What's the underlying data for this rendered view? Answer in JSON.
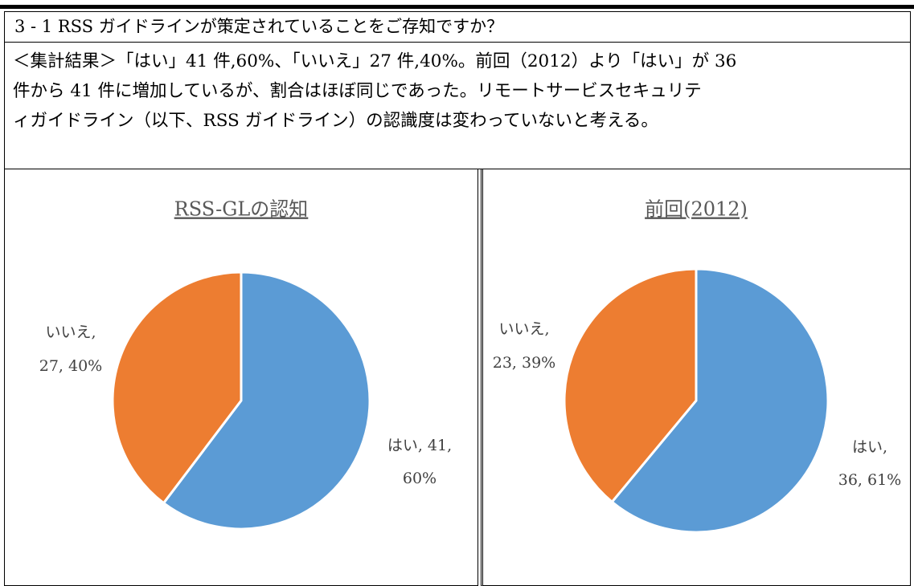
{
  "question": "3 - 1 RSS ガイドラインが策定されていることをご存知ですか？",
  "summary": [
    "＜集計結果＞「はい」41 件,60%、「いいえ」27 件,40%。前回（2012）より「はい」が 36",
    "件から 41 件に増加しているが、割合はほぼ同じであった。リモートサービスセキュリテ",
    "ィガイドライン（以下、RSS ガイドライン）の認識度は変わっていないと考える。"
  ],
  "chart_data": [
    {
      "type": "pie",
      "title": "RSS-GLの認知",
      "categories": [
        "はい",
        "いいえ"
      ],
      "values": [
        41,
        27
      ],
      "value_labels": [
        [
          "はい, 41,",
          "60%"
        ],
        [
          "いいえ,",
          "27, 40%"
        ]
      ],
      "colors": [
        "#5b9bd5",
        "#ed7d31"
      ]
    },
    {
      "type": "pie",
      "title": "前回(2012)",
      "categories": [
        "はい",
        "いいえ"
      ],
      "values": [
        36,
        23
      ],
      "value_labels": [
        [
          "はい,",
          "36, 61%"
        ],
        [
          "いいえ,",
          "23, 39%"
        ]
      ],
      "colors": [
        "#5b9bd5",
        "#ed7d31"
      ]
    }
  ]
}
